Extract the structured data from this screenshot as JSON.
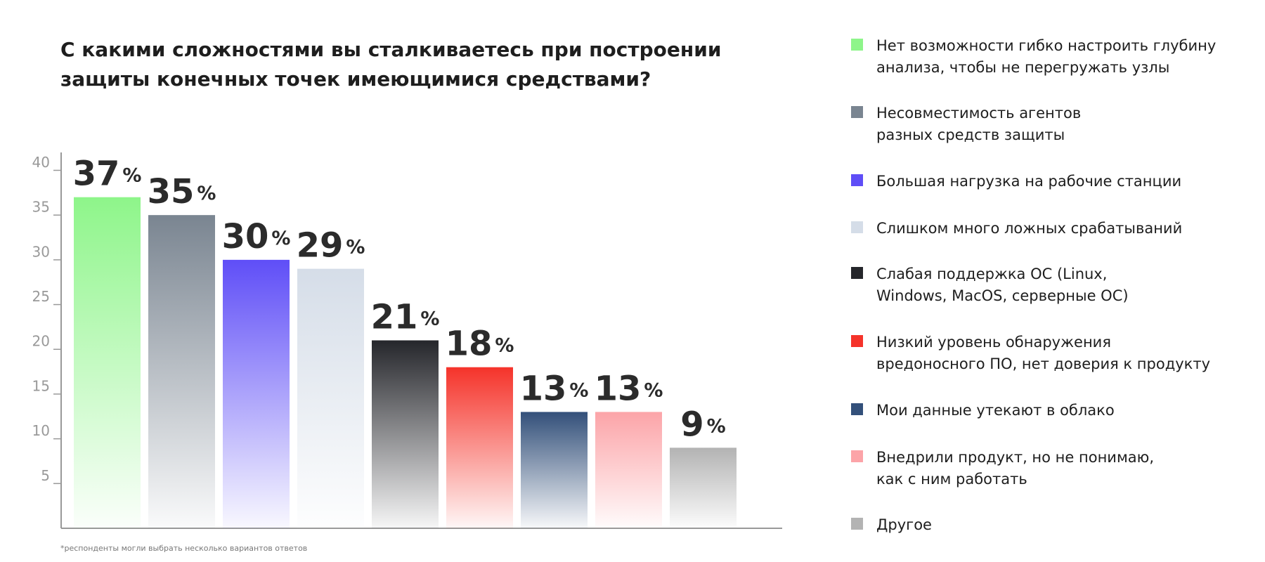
{
  "chart_data": {
    "type": "bar",
    "title": "С какими сложностями вы сталкиваетесь при построении\nзащиты конечных точек имеющимися средствами?",
    "categories": [
      "Нет возможности гибко настроить глубину\nанализа, чтобы не перегружать узлы",
      "Несовместимость агентов\nразных средств защиты",
      "Большая нагрузка на рабочие станции",
      "Слишком много ложных срабатываний",
      "Слабая поддержка ОС (Linux,\nWindows, MacOS, серверные ОС)",
      "Низкий уровень обнаружения\nвредоносного ПО, нет доверия к продукту",
      "Мои данные утекают в облако",
      "Внедрили продукт, но не понимаю,\nкак с ним работать",
      "Другое"
    ],
    "values": [
      37,
      35,
      30,
      29,
      21,
      18,
      13,
      13,
      9
    ],
    "value_labels": [
      "37%",
      "35%",
      "30%",
      "29%",
      "21%",
      "18%",
      "13%",
      "13%",
      "9%"
    ],
    "colors": [
      "#8ef58a",
      "#7a8591",
      "#5f4ef7",
      "#d5dde8",
      "#25262b",
      "#f5332a",
      "#33507a",
      "#fca4a8",
      "#b3b3b3"
    ],
    "ylim": [
      0,
      42
    ],
    "yticks": [
      5,
      10,
      15,
      20,
      25,
      30,
      35,
      40
    ],
    "footnote": "*респонденты могли выбрать несколько вариантов ответов"
  }
}
